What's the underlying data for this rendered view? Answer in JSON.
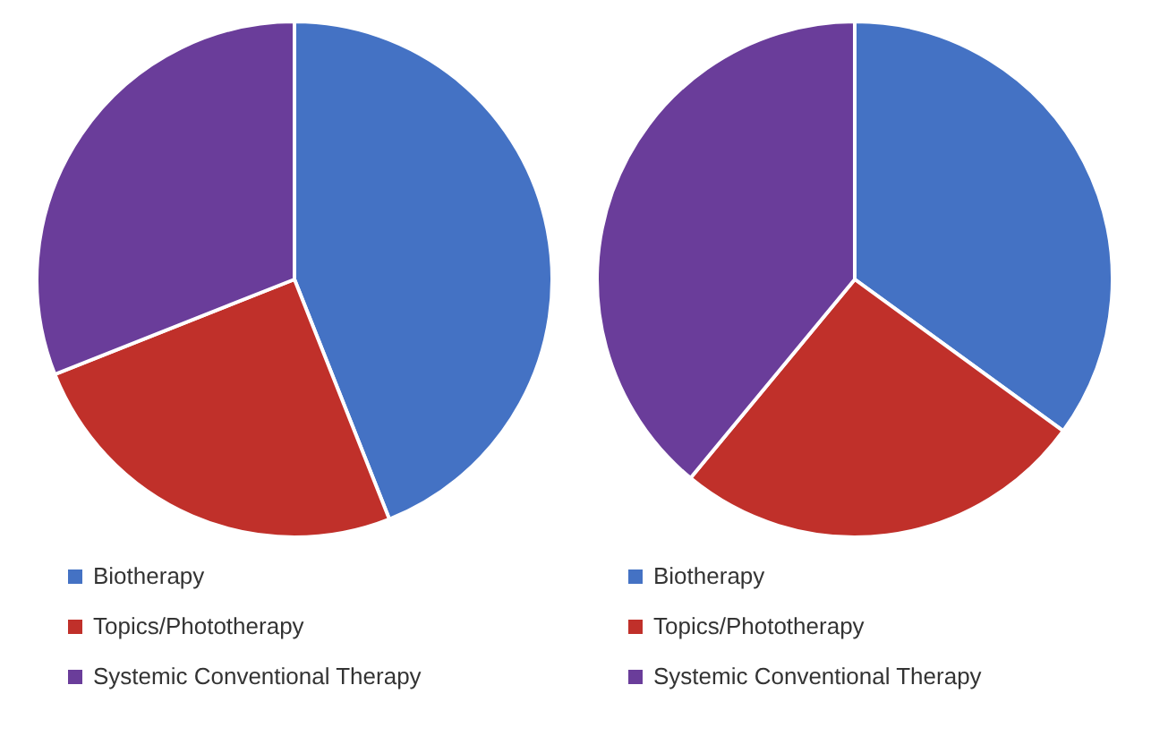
{
  "chart_data": [
    {
      "type": "pie",
      "categories": [
        "Biotherapy",
        "Topics/Phototherapy",
        "Systemic Conventional Therapy"
      ],
      "values": [
        44,
        25,
        31
      ],
      "colors": [
        "#4472c4",
        "#c0302a",
        "#6a3d9a"
      ],
      "legend": "bottom"
    },
    {
      "type": "pie",
      "categories": [
        "Biotherapy",
        "Topics/Phototherapy",
        "Systemic Conventional Therapy"
      ],
      "values": [
        35,
        26,
        39
      ],
      "colors": [
        "#4472c4",
        "#c0302a",
        "#6a3d9a"
      ],
      "legend": "bottom"
    }
  ]
}
